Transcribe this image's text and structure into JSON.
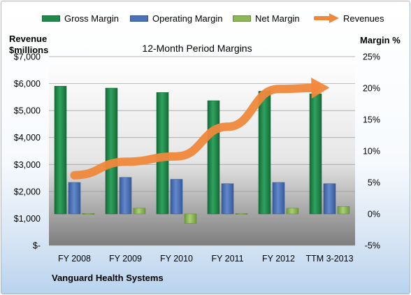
{
  "chart_data": {
    "type": "bar",
    "title": "12-Month Period Margins",
    "categories": [
      "FY 2008",
      "FY 2009",
      "FY 2010",
      "FY 2011",
      "FY 2012",
      "TTM 3-2013"
    ],
    "series": [
      {
        "name": "Gross Margin",
        "type": "bar",
        "axis": "right",
        "color": "#1f8a4c",
        "values": [
          20.3,
          20.0,
          19.3,
          18.0,
          19.5,
          19.1
        ]
      },
      {
        "name": "Operating Margin",
        "type": "bar",
        "axis": "right",
        "color": "#4a72b8",
        "values": [
          5.0,
          5.8,
          5.5,
          4.8,
          5.0,
          4.8
        ]
      },
      {
        "name": "Net Margin",
        "type": "bar",
        "axis": "right",
        "color": "#8db85a",
        "values": [
          0.0,
          0.9,
          -1.5,
          -0.1,
          0.9,
          1.2
        ]
      },
      {
        "name": "Revenues",
        "type": "line",
        "axis": "left",
        "color": "#f0883c",
        "values": [
          2600,
          3100,
          3300,
          4400,
          5800,
          5850
        ]
      }
    ],
    "y_left": {
      "label": "Revenue $millions",
      "ylim": [
        0,
        7000
      ],
      "ticks": [
        "$-",
        "$1,000",
        "$2,000",
        "$3,000",
        "$4,000",
        "$5,000",
        "$6,000",
        "$7,000"
      ]
    },
    "y_right": {
      "label": "Margin %",
      "ylim": [
        -5,
        25
      ],
      "ticks": [
        "-5%",
        "0%",
        "5%",
        "10%",
        "15%",
        "20%",
        "25%"
      ]
    },
    "grid": true,
    "legend": "top"
  },
  "footer": "Vanguard Health Systems",
  "legend": [
    "Gross Margin",
    "Operating Margin",
    "Net Margin",
    "Revenues"
  ],
  "axis_titles": {
    "left_line1": "Revenue",
    "left_line2": "$millions",
    "right": "Margin %"
  }
}
